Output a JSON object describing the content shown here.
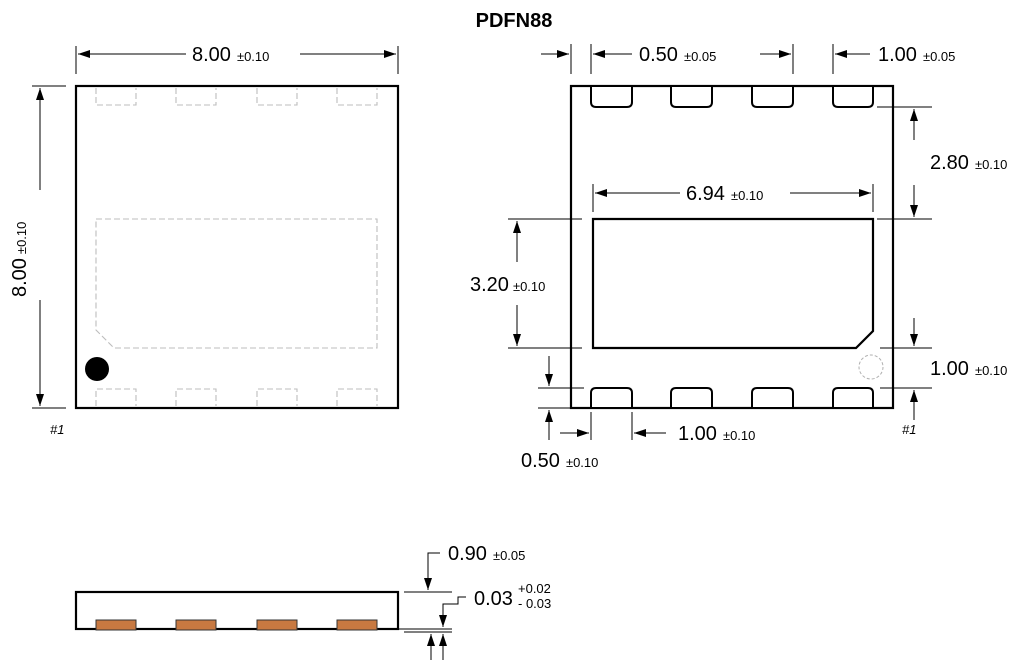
{
  "title": "PDFN88",
  "colors": {
    "line": "#000000",
    "hidden_line": "#bdbdbd",
    "copper_pad": "#c87941",
    "background": "#ffffff"
  },
  "top_view": {
    "width": {
      "value": "8.00",
      "tol": "±0.10"
    },
    "height": {
      "value": "8.00",
      "tol": "±0.10"
    },
    "pin_label": "#1"
  },
  "bottom_view": {
    "pad_width": {
      "value": "0.50",
      "tol": "±0.05"
    },
    "pad_pitch": {
      "value": "1.00",
      "tol": "±0.05"
    },
    "pad_to_thermal": {
      "value": "2.80",
      "tol": "±0.10"
    },
    "thermal_width": {
      "value": "6.94",
      "tol": "±0.10"
    },
    "thermal_height": {
      "value": "3.20",
      "tol": "±0.10"
    },
    "bottom_pad_gap": {
      "value": "1.00",
      "tol": "±0.10"
    },
    "pad_length": {
      "value": "1.00",
      "tol": "±0.10"
    },
    "pad_edge": {
      "value": "0.50",
      "tol": "±0.10"
    },
    "pin_label": "#1"
  },
  "side_view": {
    "height": {
      "value": "0.90",
      "tol": "±0.05"
    },
    "standoff": {
      "value": "0.03",
      "tol_plus": "+0.02",
      "tol_minus": "- 0.03"
    }
  }
}
